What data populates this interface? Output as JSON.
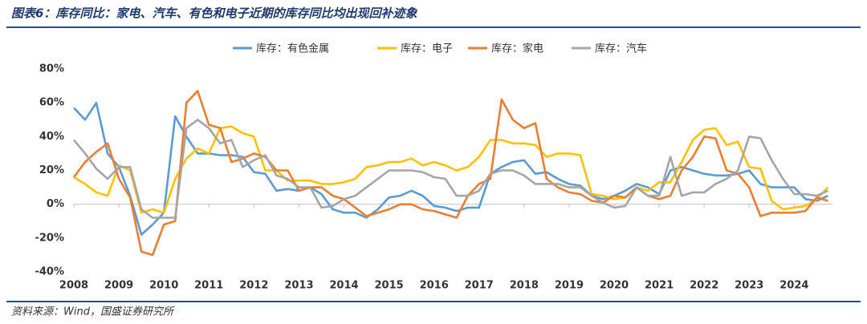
{
  "chart_data": {
    "type": "line",
    "title": "图表6：库存同比：家电、汽车、有色和电子近期的库存同比均出现回补迹象",
    "source": "资料来源：Wind，国盛证券研究所",
    "x": [
      2008,
      2008.25,
      2008.5,
      2008.75,
      2009,
      2009.25,
      2009.5,
      2009.75,
      2010,
      2010.25,
      2010.5,
      2010.75,
      2011,
      2011.25,
      2011.5,
      2011.75,
      2012,
      2012.25,
      2012.5,
      2012.75,
      2013,
      2013.25,
      2013.5,
      2013.75,
      2014,
      2014.25,
      2014.5,
      2014.75,
      2015,
      2015.25,
      2015.5,
      2015.75,
      2016,
      2016.25,
      2016.5,
      2016.75,
      2017,
      2017.25,
      2017.5,
      2017.75,
      2018,
      2018.25,
      2018.5,
      2018.75,
      2019,
      2019.25,
      2019.5,
      2019.75,
      2020,
      2020.25,
      2020.5,
      2020.75,
      2021,
      2021.25,
      2021.5,
      2021.75,
      2022,
      2022.25,
      2022.5,
      2022.75,
      2023,
      2023.25,
      2023.5,
      2023.75,
      2024,
      2024.25,
      2024.5,
      2024.75
    ],
    "series": [
      {
        "name": "库存：有色金属",
        "color": "#5b9bd5",
        "values": [
          57,
          50,
          60,
          30,
          22,
          5,
          -18,
          -12,
          -5,
          52,
          40,
          30,
          30,
          29,
          29,
          28,
          19,
          18,
          8,
          9,
          8,
          10,
          6,
          -3,
          -5,
          -5,
          -8,
          -3,
          4,
          5,
          8,
          5,
          -1,
          -2,
          -4,
          -2,
          -2,
          18,
          22,
          25,
          26,
          18,
          19,
          15,
          12,
          11,
          5,
          3,
          5,
          8,
          12,
          10,
          6,
          20,
          22,
          20,
          18,
          17,
          17,
          18,
          20,
          12,
          10,
          10,
          10,
          3,
          2,
          5
        ]
      },
      {
        "name": "库存：电子",
        "color": "#ffc000",
        "values": [
          16,
          12,
          7,
          5,
          23,
          20,
          -5,
          -3,
          -5,
          15,
          27,
          33,
          30,
          45,
          46,
          42,
          40,
          20,
          20,
          14,
          14,
          14,
          12,
          12,
          13,
          15,
          22,
          23,
          25,
          25,
          27,
          23,
          25,
          23,
          20,
          22,
          28,
          38,
          38,
          36,
          36,
          35,
          28,
          30,
          30,
          29,
          6,
          5,
          3,
          4,
          10,
          8,
          13,
          13,
          25,
          38,
          44,
          45,
          35,
          37,
          22,
          21,
          2,
          -3,
          -2,
          -1,
          3,
          10
        ]
      },
      {
        "name": "库存：家电",
        "color": "#ed7d31",
        "values": [
          16,
          25,
          31,
          36,
          15,
          4,
          -28,
          -30,
          -12,
          -10,
          60,
          67,
          47,
          45,
          25,
          27,
          30,
          28,
          20,
          20,
          8,
          10,
          10,
          5,
          3,
          -2,
          -7,
          -5,
          -3,
          0,
          0,
          -3,
          -4,
          -6,
          -8,
          5,
          12,
          15,
          62,
          50,
          45,
          48,
          15,
          10,
          7,
          6,
          2,
          1,
          5,
          4,
          10,
          5,
          3,
          5,
          20,
          28,
          40,
          39,
          20,
          18,
          10,
          -7,
          -5,
          -5,
          -5,
          -4,
          4,
          2
        ]
      },
      {
        "name": "库存：汽车",
        "color": "#a5a5a5",
        "values": [
          38,
          30,
          21,
          15,
          22,
          22,
          -3,
          -8,
          -8,
          -8,
          45,
          50,
          45,
          36,
          38,
          22,
          26,
          29,
          17,
          15,
          10,
          10,
          -2,
          -1,
          3,
          5,
          10,
          15,
          20,
          20,
          20,
          19,
          16,
          15,
          5,
          5,
          8,
          18,
          20,
          20,
          17,
          12,
          12,
          12,
          10,
          10,
          5,
          1,
          -2,
          -1,
          10,
          5,
          5,
          28,
          5,
          7,
          7,
          12,
          15,
          20,
          40,
          39,
          26,
          15,
          6,
          6,
          5,
          8
        ]
      }
    ],
    "xlim": [
      2008,
      2024.85
    ],
    "xticks": [
      2008,
      2009,
      2010,
      2011,
      2012,
      2013,
      2014,
      2015,
      2016,
      2017,
      2018,
      2019,
      2020,
      2021,
      2022,
      2023,
      2024
    ],
    "ylim": [
      -40,
      80
    ],
    "yticks": [
      {
        "value": -40,
        "label": "-40%"
      },
      {
        "value": -20,
        "label": "-20%"
      },
      {
        "value": 0,
        "label": "0%"
      },
      {
        "value": 20,
        "label": "20%"
      },
      {
        "value": 40,
        "label": "40%"
      },
      {
        "value": 60,
        "label": "60%"
      },
      {
        "value": 80,
        "label": "80%"
      }
    ],
    "grid": false,
    "legend": "top"
  }
}
